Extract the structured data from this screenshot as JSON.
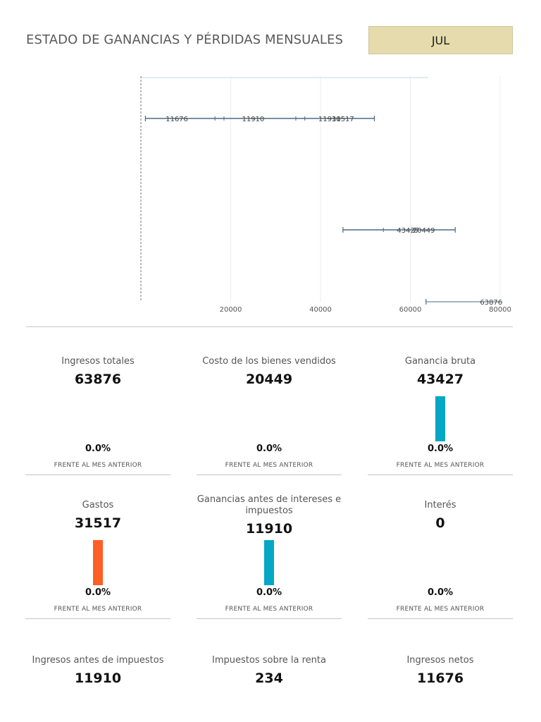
{
  "header": {
    "title": "ESTADO DE GANANCIAS Y PÉRDIDAS MENSUALES",
    "month": "JUL"
  },
  "chart_data": {
    "type": "bar",
    "orientation": "horizontal-waterfall",
    "x_ticks": [
      "20000",
      "40000",
      "60000",
      "80000"
    ],
    "xlim": [
      0,
      80000
    ],
    "grid": true,
    "error_bar_color": "#4a6a8a",
    "rows": [
      {
        "segments": [
          {
            "low": 1000,
            "high": 52000,
            "marks": [
              16500,
              18500,
              34500,
              36500
            ],
            "labels": [
              "11676",
              "11910",
              "11910",
              "31517"
            ]
          }
        ]
      },
      {
        "segments": [
          {
            "low": 45000,
            "high": 70000,
            "marks": [
              54000,
              61000
            ],
            "labels": [
              "43427",
              "20449"
            ]
          }
        ]
      },
      {
        "segments": [
          {
            "low": 63500,
            "high": 80500,
            "marks": [],
            "labels": [
              "63876"
            ]
          }
        ]
      }
    ]
  },
  "kpis": [
    {
      "label": "Ingresos totales",
      "value": "63876",
      "pct": "0.0%",
      "note": "FRENTE AL MES ANTERIOR",
      "bar": null
    },
    {
      "label": "Costo de los bienes vendidos",
      "value": "20449",
      "pct": "0.0%",
      "note": "FRENTE AL MES ANTERIOR",
      "bar": null
    },
    {
      "label": "Ganancia bruta",
      "value": "43427",
      "pct": "0.0%",
      "note": "FRENTE AL MES ANTERIOR",
      "bar": "#05a7c7"
    },
    {
      "label": "Gastos",
      "value": "31517",
      "pct": "0.0%",
      "note": "FRENTE AL MES ANTERIOR",
      "bar": "#ff5f24"
    },
    {
      "label": "Ganancias antes de intereses e impuestos",
      "value": "11910",
      "pct": "0.0%",
      "note": "FRENTE AL MES ANTERIOR",
      "bar": "#05a7c7"
    },
    {
      "label": "Interés",
      "value": "0",
      "pct": "0.0%",
      "note": "FRENTE AL MES ANTERIOR",
      "bar": null
    },
    {
      "label": "Ingresos antes de impuestos",
      "value": "11910",
      "pct": null,
      "note": null,
      "bar": null
    },
    {
      "label": "Impuestos sobre la renta",
      "value": "234",
      "pct": null,
      "note": null,
      "bar": null
    },
    {
      "label": "Ingresos netos",
      "value": "11676",
      "pct": null,
      "note": null,
      "bar": null
    }
  ]
}
